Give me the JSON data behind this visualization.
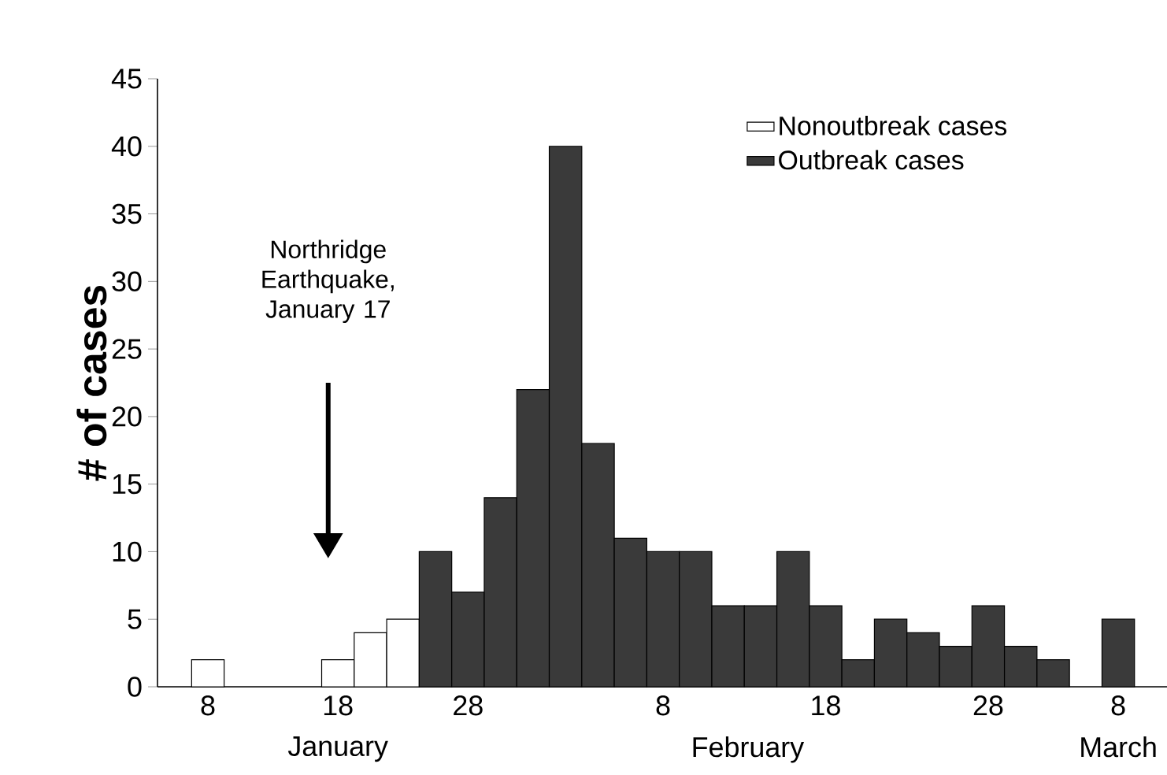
{
  "chart_data": {
    "type": "bar",
    "ylabel": "# of cases",
    "categories": [
      "8",
      null,
      null,
      null,
      "18",
      null,
      null,
      null,
      "28",
      null,
      null,
      null,
      null,
      null,
      "8",
      null,
      null,
      null,
      null,
      "18",
      null,
      null,
      null,
      null,
      "28",
      null,
      null,
      null,
      "8"
    ],
    "series": [
      {
        "name": "Nonoutbreak cases",
        "color": "#ffffff",
        "values": [
          2,
          null,
          null,
          null,
          2,
          4,
          5,
          null,
          null,
          null,
          null,
          null,
          null,
          null,
          null,
          null,
          null,
          null,
          null,
          null,
          null,
          null,
          null,
          null,
          null,
          null,
          null,
          null,
          null
        ]
      },
      {
        "name": "Outbreak cases",
        "color": "#3a3a3a",
        "values": [
          null,
          null,
          null,
          null,
          null,
          null,
          null,
          10,
          7,
          14,
          22,
          40,
          18,
          11,
          10,
          10,
          6,
          6,
          10,
          6,
          2,
          5,
          4,
          3,
          6,
          3,
          2,
          null,
          5
        ]
      }
    ],
    "ylim": [
      0,
      45
    ],
    "yticks": [
      0,
      5,
      10,
      15,
      20,
      25,
      30,
      35,
      40,
      45
    ],
    "legend": "top right",
    "grid": false,
    "annotations": [
      "Northridge Earthquake, January 17",
      "January",
      "February",
      "March"
    ]
  }
}
